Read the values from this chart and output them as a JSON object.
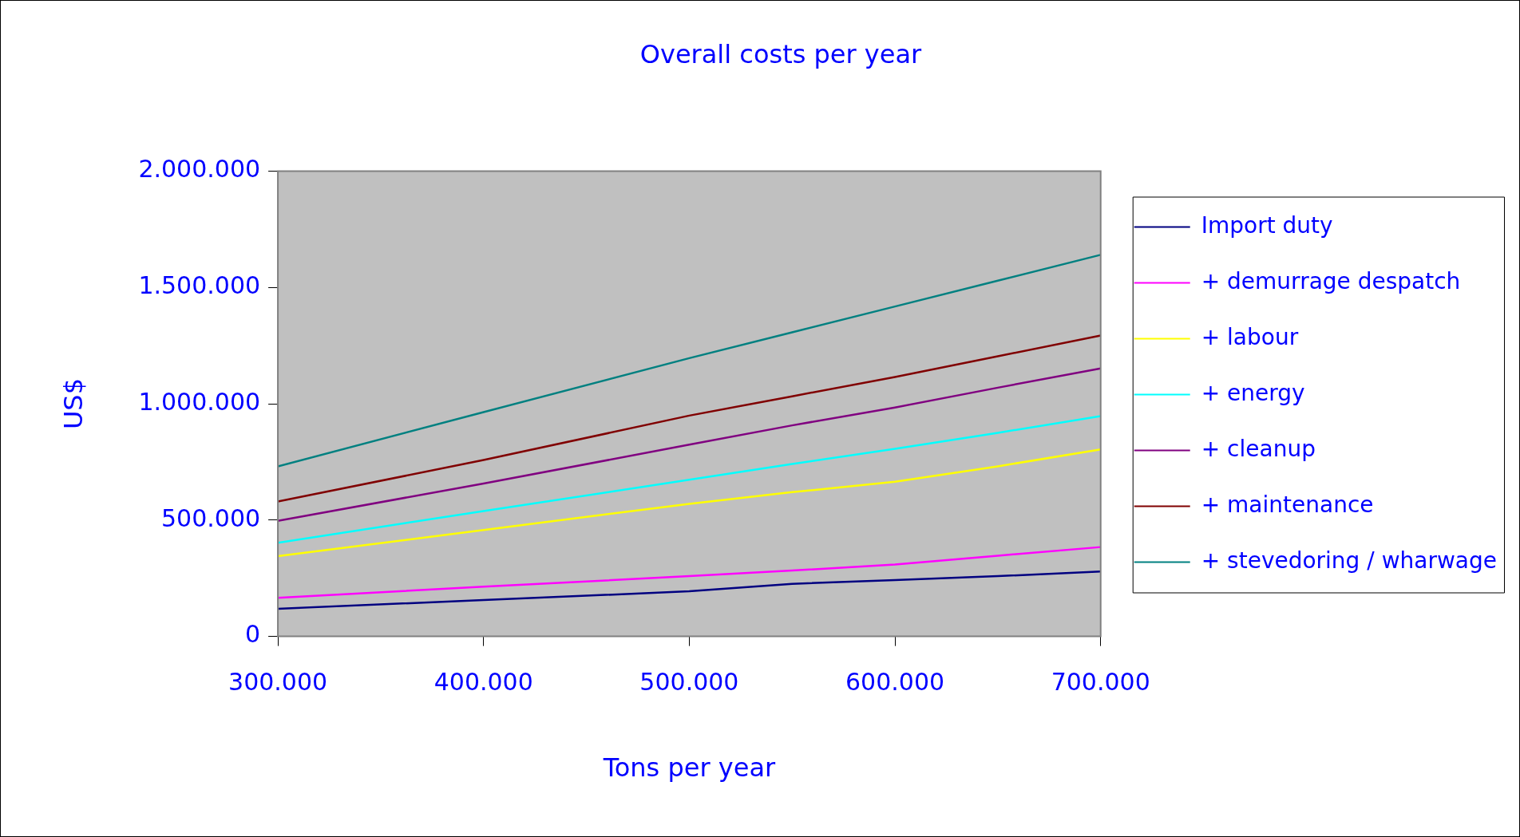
{
  "chart_data": {
    "type": "line",
    "title": "Overall costs per year",
    "xlabel": "Tons per year",
    "ylabel": "US$",
    "x": [
      300000,
      400000,
      500000,
      550000,
      600000,
      650000,
      700000
    ],
    "xlim": [
      300000,
      700000
    ],
    "xticks": [
      {
        "value": 300000,
        "label": "300.000"
      },
      {
        "value": 400000,
        "label": "400.000"
      },
      {
        "value": 500000,
        "label": "500.000"
      },
      {
        "value": 600000,
        "label": "600.000"
      },
      {
        "value": 700000,
        "label": "700.000"
      }
    ],
    "ylim": [
      0,
      2000000
    ],
    "yticks": [
      {
        "value": 0,
        "label": "0"
      },
      {
        "value": 500000,
        "label": "500.000"
      },
      {
        "value": 1000000,
        "label": "1.000.000"
      },
      {
        "value": 1500000,
        "label": "1.500.000"
      },
      {
        "value": 2000000,
        "label": "2.000.000"
      }
    ],
    "series": [
      {
        "name": "Import duty",
        "color": "#000080",
        "values": [
          119000,
          156000,
          194000,
          226000,
          242000,
          259000,
          279000
        ]
      },
      {
        "name": "+ demurrage despatch",
        "color": "#ff00ff",
        "values": [
          166000,
          214000,
          259000,
          283000,
          309000,
          347000,
          384000
        ]
      },
      {
        "name": "+ labour",
        "color": "#ffff00",
        "values": [
          345000,
          457000,
          570000,
          620000,
          665000,
          731000,
          804000
        ]
      },
      {
        "name": "+ energy",
        "color": "#00ffff",
        "values": [
          402000,
          539000,
          673000,
          741000,
          806000,
          875000,
          947000
        ]
      },
      {
        "name": "+ cleanup",
        "color": "#800080",
        "values": [
          497000,
          657000,
          824000,
          907000,
          984000,
          1069000,
          1152000
        ]
      },
      {
        "name": "+ maintenance",
        "color": "#800000",
        "values": [
          580000,
          758000,
          949000,
          1032000,
          1115000,
          1204000,
          1293000
        ]
      },
      {
        "name": "+ stevedoring / wharwage",
        "color": "#008080",
        "values": [
          731000,
          964000,
          1196000,
          1307000,
          1418000,
          1529000,
          1640000
        ]
      }
    ],
    "legend": "right",
    "grid": false,
    "marker": "none",
    "line_style": "solid"
  }
}
